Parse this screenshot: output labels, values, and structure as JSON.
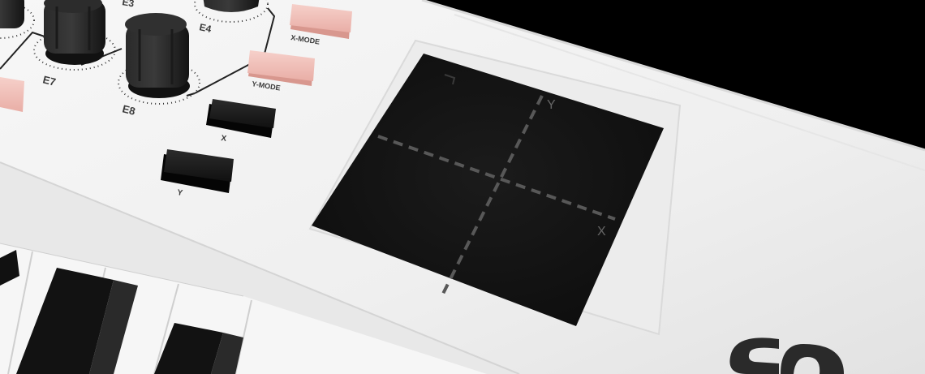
{
  "scene": {
    "description_free": true
  },
  "controls": {
    "labels": {
      "e3": "E3",
      "e4": "E4",
      "e7": "E7",
      "e8": "E8",
      "x_mode": "X-MODE",
      "y_mode": "Y-MODE",
      "x": "X",
      "y": "Y"
    }
  },
  "xy_pad": {
    "axis_x": "X",
    "axis_y": "Y"
  },
  "colors": {
    "body": "#f4f4f4",
    "mode_button": "#f2c4be",
    "dark_button": "#1c1c1c",
    "pad": "#131313",
    "pad_grid": "#585858"
  }
}
